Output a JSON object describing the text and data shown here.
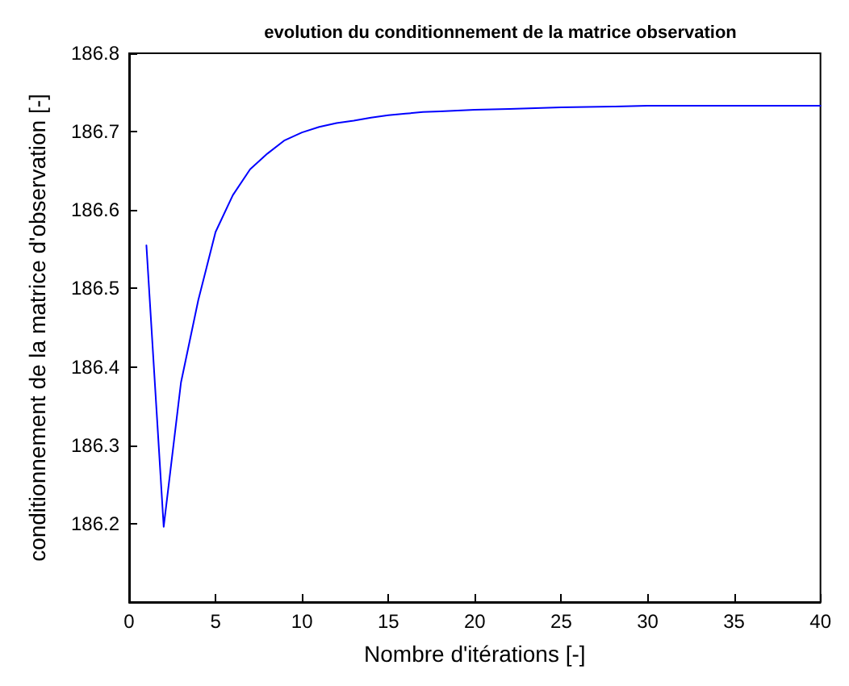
{
  "chart_data": {
    "type": "line",
    "title": "evolution du conditionnement de la matrice observation",
    "xlabel": "Nombre d'itérations [-]",
    "ylabel": "conditionnement de la matrice d'observation [-]",
    "x": [
      1,
      2,
      3,
      4,
      5,
      6,
      7,
      8,
      9,
      10,
      11,
      12,
      13,
      14,
      15,
      16,
      17,
      18,
      19,
      20,
      22,
      25,
      28,
      30,
      35,
      40
    ],
    "series": [
      {
        "color": "#0000ff",
        "values": [
          186.555,
          186.196,
          186.38,
          186.485,
          186.572,
          186.619,
          186.652,
          186.672,
          186.689,
          186.699,
          186.706,
          186.711,
          186.714,
          186.718,
          186.721,
          186.723,
          186.725,
          186.726,
          186.727,
          186.728,
          186.729,
          186.731,
          186.732,
          186.733,
          186.733,
          186.733
        ]
      }
    ],
    "xlim": [
      0,
      40
    ],
    "xticks": [
      0,
      5,
      10,
      15,
      20,
      25,
      30,
      35,
      40
    ],
    "ylim": [
      186.1,
      186.8
    ],
    "yticks": [
      186.2,
      186.3,
      186.4,
      186.5,
      186.6,
      186.7,
      186.8
    ],
    "grid": false,
    "marker": "none",
    "line_style": "solid"
  }
}
